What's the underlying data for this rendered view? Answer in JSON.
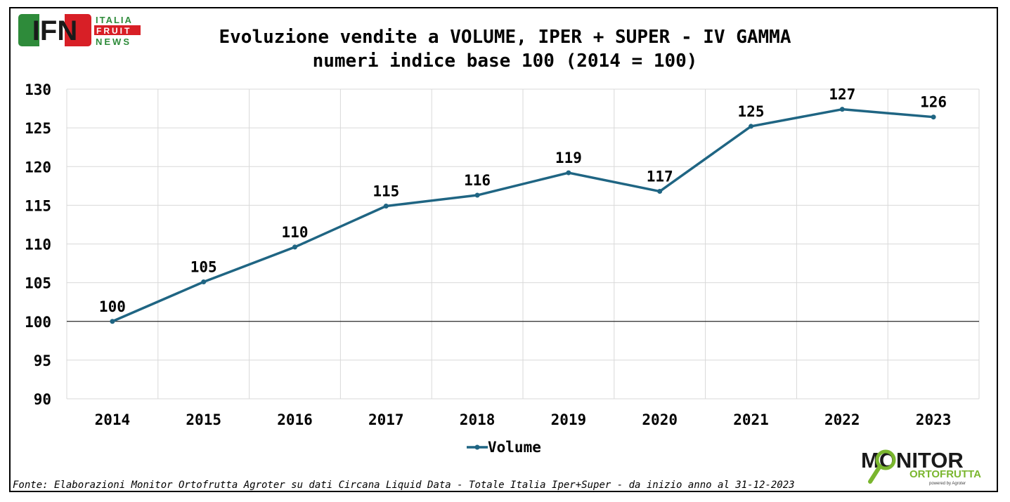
{
  "logo_ifn": {
    "letters": "IFN",
    "line1": "ITALIA",
    "line2": "FRUIT",
    "line3": "NEWS"
  },
  "logo_monitor": {
    "word1": "MONITOR",
    "word2": "ORTOFRUTTA",
    "tagline": "powered by Agroter"
  },
  "source": "Fonte: Elaborazioni Monitor Ortofrutta Agroter su dati Circana Liquid Data - Totale Italia Iper+Super - da inizio anno al 31-12-2023",
  "colors": {
    "series": "#1f6583",
    "ifn_green": "#2e8b3a",
    "ifn_red": "#d81f26",
    "monitor_green": "#7ab62e"
  },
  "chart_data": {
    "type": "line",
    "title": "Evoluzione vendite a VOLUME, IPER + SUPER - IV GAMMA",
    "subtitle": "numeri indice base 100 (2014 = 100)",
    "categories": [
      "2014",
      "2015",
      "2016",
      "2017",
      "2018",
      "2019",
      "2020",
      "2021",
      "2022",
      "2023"
    ],
    "series": [
      {
        "name": "Volume",
        "values": [
          100,
          105.1,
          109.6,
          114.9,
          116.3,
          119.2,
          116.8,
          125.2,
          127.4,
          126.4
        ],
        "labels": [
          "100",
          "105",
          "110",
          "115",
          "116",
          "119",
          "117",
          "125",
          "127",
          "126"
        ]
      }
    ],
    "ylim": [
      90,
      130
    ],
    "yticks": [
      "90",
      "95",
      "100",
      "105",
      "110",
      "115",
      "120",
      "125",
      "130"
    ],
    "reference_line": 100,
    "grid": true,
    "legend": "bottom-center"
  }
}
